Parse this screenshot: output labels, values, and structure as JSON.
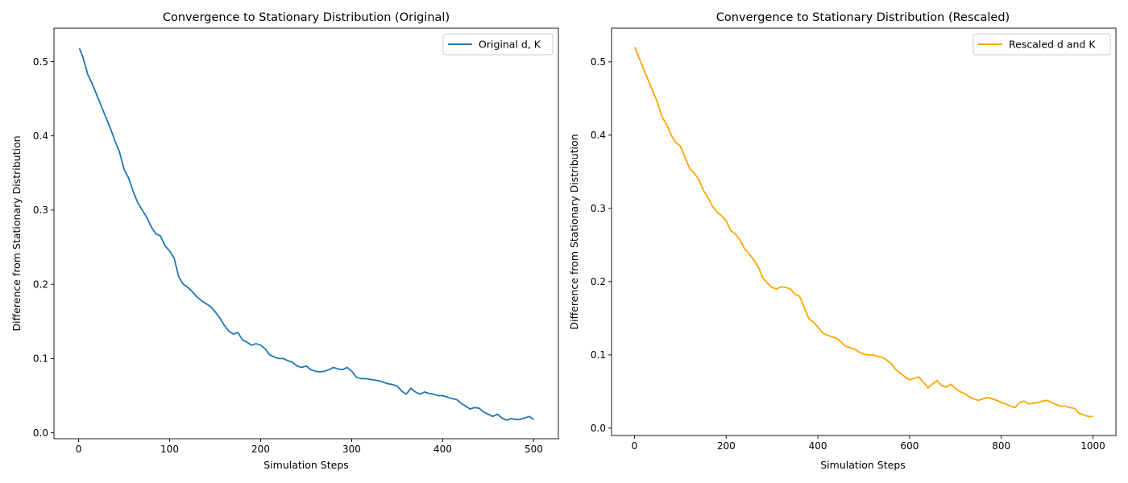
{
  "chart_data": [
    {
      "type": "line",
      "title": "Convergence to Stationary Distribution (Original)",
      "xlabel": "Simulation Steps",
      "ylabel": "Difference from Stationary Distribution",
      "xlim": [
        -27,
        527
      ],
      "ylim": [
        -0.008,
        0.545
      ],
      "xticks": [
        0,
        100,
        200,
        300,
        400,
        500
      ],
      "yticks": [
        0.0,
        0.1,
        0.2,
        0.3,
        0.4,
        0.5
      ],
      "legend_position": "upper right",
      "grid": false,
      "series": [
        {
          "name": "Original d, K",
          "color": "#1f77b4",
          "x": [
            1,
            5,
            10,
            15,
            20,
            25,
            30,
            35,
            40,
            45,
            50,
            55,
            60,
            65,
            70,
            75,
            80,
            85,
            90,
            95,
            100,
            105,
            110,
            115,
            120,
            125,
            130,
            135,
            140,
            145,
            150,
            155,
            160,
            165,
            170,
            175,
            180,
            185,
            190,
            195,
            200,
            205,
            210,
            215,
            220,
            225,
            230,
            235,
            240,
            245,
            250,
            255,
            260,
            265,
            270,
            275,
            280,
            285,
            290,
            295,
            300,
            305,
            310,
            315,
            320,
            325,
            330,
            335,
            340,
            345,
            350,
            355,
            360,
            365,
            370,
            375,
            380,
            385,
            390,
            395,
            400,
            405,
            410,
            415,
            420,
            425,
            430,
            435,
            440,
            445,
            450,
            455,
            460,
            465,
            470,
            475,
            480,
            485,
            490,
            495,
            500
          ],
          "y": [
            0.518,
            0.505,
            0.483,
            0.47,
            0.455,
            0.44,
            0.425,
            0.41,
            0.393,
            0.378,
            0.355,
            0.343,
            0.325,
            0.31,
            0.3,
            0.29,
            0.277,
            0.268,
            0.265,
            0.252,
            0.245,
            0.235,
            0.21,
            0.2,
            0.196,
            0.19,
            0.183,
            0.178,
            0.174,
            0.17,
            0.163,
            0.155,
            0.145,
            0.137,
            0.133,
            0.135,
            0.125,
            0.122,
            0.118,
            0.12,
            0.118,
            0.113,
            0.105,
            0.102,
            0.1,
            0.1,
            0.097,
            0.095,
            0.09,
            0.088,
            0.09,
            0.085,
            0.083,
            0.082,
            0.083,
            0.085,
            0.088,
            0.086,
            0.085,
            0.088,
            0.083,
            0.075,
            0.073,
            0.073,
            0.072,
            0.071,
            0.07,
            0.068,
            0.066,
            0.065,
            0.063,
            0.056,
            0.052,
            0.06,
            0.055,
            0.052,
            0.055,
            0.053,
            0.052,
            0.05,
            0.05,
            0.048,
            0.046,
            0.045,
            0.04,
            0.036,
            0.032,
            0.034,
            0.033,
            0.028,
            0.025,
            0.022,
            0.025,
            0.02,
            0.017,
            0.019,
            0.018,
            0.018,
            0.02,
            0.022,
            0.018
          ]
        }
      ]
    },
    {
      "type": "line",
      "title": "Convergence to Stationary Distribution (Rescaled)",
      "xlabel": "Simulation Steps",
      "ylabel": "Difference from Stationary Distribution",
      "xlim": [
        -50,
        1050
      ],
      "ylim": [
        -0.01,
        0.546
      ],
      "xticks": [
        0,
        200,
        400,
        600,
        800,
        1000
      ],
      "yticks": [
        0.0,
        0.1,
        0.2,
        0.3,
        0.4,
        0.5
      ],
      "legend_position": "upper right",
      "grid": false,
      "series": [
        {
          "name": "Rescaled d and K",
          "color": "#ffa500",
          "x": [
            1,
            10,
            20,
            30,
            40,
            50,
            60,
            70,
            80,
            90,
            100,
            110,
            120,
            130,
            140,
            150,
            160,
            170,
            180,
            190,
            200,
            210,
            220,
            230,
            240,
            250,
            260,
            270,
            280,
            290,
            300,
            310,
            320,
            330,
            340,
            350,
            360,
            370,
            380,
            390,
            400,
            410,
            420,
            430,
            440,
            450,
            460,
            470,
            480,
            490,
            500,
            510,
            520,
            530,
            540,
            550,
            560,
            570,
            580,
            590,
            600,
            610,
            620,
            630,
            640,
            650,
            660,
            670,
            680,
            690,
            700,
            710,
            720,
            730,
            740,
            750,
            760,
            770,
            780,
            790,
            800,
            810,
            820,
            830,
            840,
            850,
            860,
            870,
            880,
            890,
            900,
            910,
            920,
            930,
            940,
            950,
            960,
            970,
            980,
            990,
            1000
          ],
          "y": [
            0.52,
            0.505,
            0.49,
            0.475,
            0.46,
            0.445,
            0.425,
            0.415,
            0.4,
            0.39,
            0.385,
            0.37,
            0.355,
            0.348,
            0.34,
            0.325,
            0.315,
            0.303,
            0.295,
            0.29,
            0.283,
            0.27,
            0.265,
            0.257,
            0.245,
            0.238,
            0.23,
            0.22,
            0.205,
            0.198,
            0.192,
            0.19,
            0.193,
            0.192,
            0.19,
            0.183,
            0.18,
            0.165,
            0.15,
            0.145,
            0.138,
            0.13,
            0.127,
            0.125,
            0.123,
            0.118,
            0.112,
            0.11,
            0.108,
            0.104,
            0.101,
            0.1,
            0.1,
            0.098,
            0.097,
            0.093,
            0.088,
            0.08,
            0.075,
            0.07,
            0.066,
            0.068,
            0.07,
            0.063,
            0.055,
            0.06,
            0.065,
            0.058,
            0.056,
            0.06,
            0.054,
            0.05,
            0.047,
            0.043,
            0.04,
            0.038,
            0.04,
            0.042,
            0.04,
            0.038,
            0.035,
            0.033,
            0.03,
            0.028,
            0.035,
            0.037,
            0.033,
            0.034,
            0.035,
            0.037,
            0.038,
            0.035,
            0.032,
            0.03,
            0.03,
            0.028,
            0.027,
            0.02,
            0.018,
            0.016,
            0.016
          ]
        }
      ]
    }
  ]
}
